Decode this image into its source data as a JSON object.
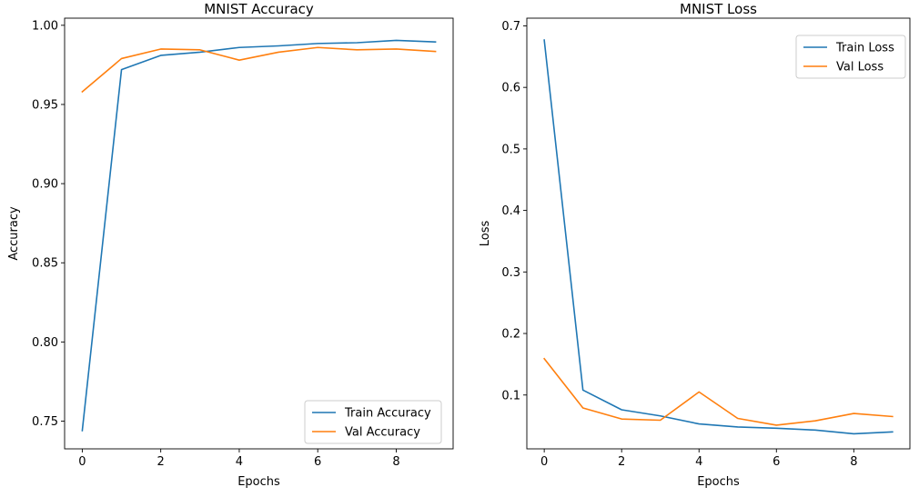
{
  "chart_data": [
    {
      "type": "line",
      "title": "MNIST Accuracy",
      "xlabel": "Epochs",
      "ylabel": "Accuracy",
      "x": [
        0,
        1,
        2,
        3,
        4,
        5,
        6,
        7,
        8,
        9
      ],
      "xlim": [
        -0.45,
        9.45
      ],
      "ylim": [
        0.7325,
        1.0045
      ],
      "xticks": [
        0,
        2,
        4,
        6,
        8
      ],
      "xtick_labels": [
        "0",
        "2",
        "4",
        "6",
        "8"
      ],
      "yticks": [
        0.75,
        0.8,
        0.85,
        0.9,
        0.95,
        1.0
      ],
      "ytick_labels": [
        "0.75",
        "0.80",
        "0.85",
        "0.90",
        "0.95",
        "1.00"
      ],
      "legend_position": "bottom-right",
      "series": [
        {
          "name": "Train Accuracy",
          "color": "#1f77b4",
          "values": [
            0.744,
            0.972,
            0.981,
            0.983,
            0.986,
            0.987,
            0.9885,
            0.989,
            0.9905,
            0.9895
          ]
        },
        {
          "name": "Val Accuracy",
          "color": "#ff7f0e",
          "values": [
            0.958,
            0.979,
            0.985,
            0.9845,
            0.978,
            0.983,
            0.986,
            0.9845,
            0.985,
            0.9835
          ]
        }
      ]
    },
    {
      "type": "line",
      "title": "MNIST Loss",
      "xlabel": "Epochs",
      "ylabel": "Loss",
      "x": [
        0,
        1,
        2,
        3,
        4,
        5,
        6,
        7,
        8,
        9
      ],
      "xlim": [
        -0.45,
        9.45
      ],
      "ylim": [
        0.0125,
        0.7125
      ],
      "xticks": [
        0,
        2,
        4,
        6,
        8
      ],
      "xtick_labels": [
        "0",
        "2",
        "4",
        "6",
        "8"
      ],
      "yticks": [
        0.1,
        0.2,
        0.3,
        0.4,
        0.5,
        0.6,
        0.7
      ],
      "ytick_labels": [
        "0.1",
        "0.2",
        "0.3",
        "0.4",
        "0.5",
        "0.6",
        "0.7"
      ],
      "legend_position": "top-right",
      "series": [
        {
          "name": "Train Loss",
          "color": "#1f77b4",
          "values": [
            0.677,
            0.108,
            0.076,
            0.066,
            0.053,
            0.048,
            0.046,
            0.043,
            0.037,
            0.04
          ]
        },
        {
          "name": "Val Loss",
          "color": "#ff7f0e",
          "values": [
            0.159,
            0.079,
            0.061,
            0.059,
            0.105,
            0.062,
            0.051,
            0.058,
            0.07,
            0.065
          ]
        }
      ]
    }
  ]
}
